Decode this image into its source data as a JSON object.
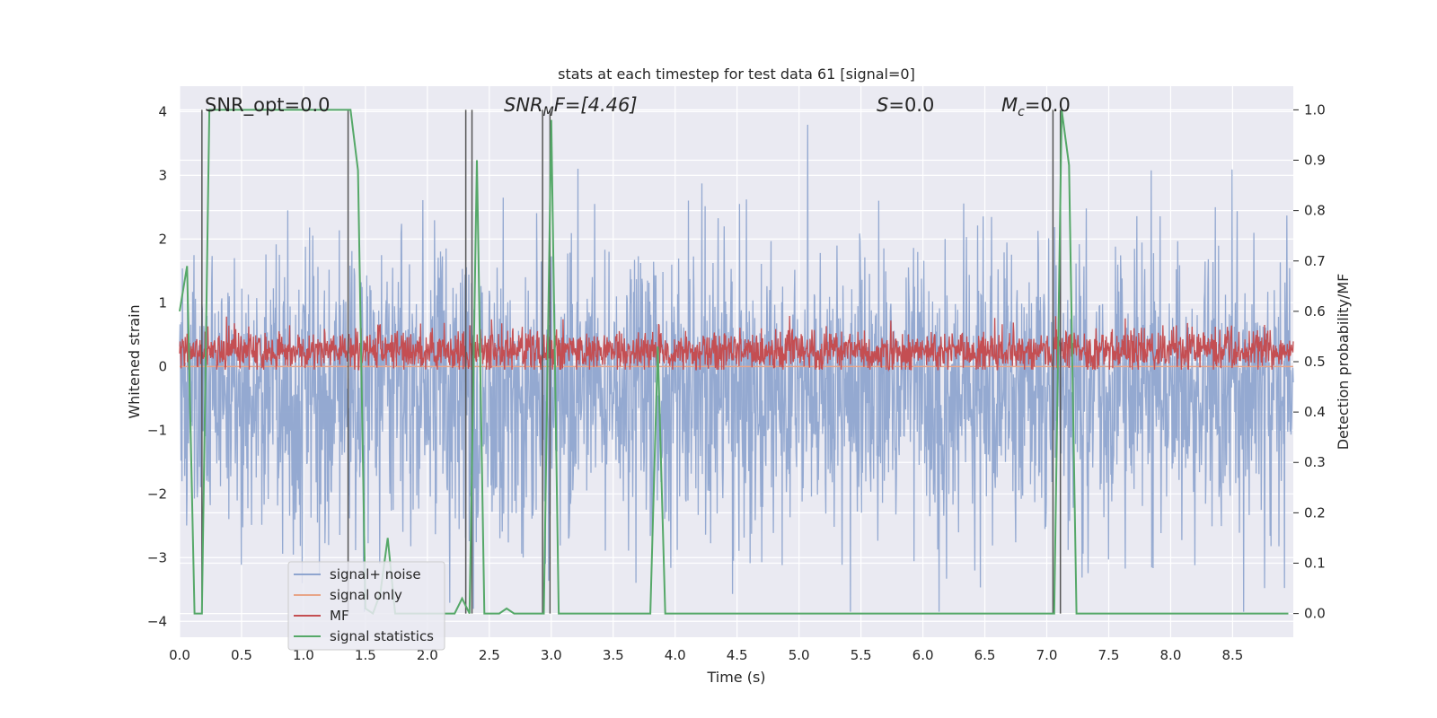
{
  "chart_data": {
    "type": "line",
    "title": "stats at each timestep for test data 61 [signal=0]",
    "xlabel": "Time (s)",
    "ylabel": "Whitened strain",
    "ylabel_right": "Detection probability/MF",
    "xlim": [
      0.0,
      8.99
    ],
    "ylim": [
      -4.25,
      4.4
    ],
    "ylim_right": [
      -0.047,
      1.047
    ],
    "xticks": [
      "0.0",
      "0.5",
      "1.0",
      "1.5",
      "2.0",
      "2.5",
      "3.0",
      "3.5",
      "4.0",
      "4.5",
      "5.0",
      "5.5",
      "6.0",
      "6.5",
      "7.0",
      "7.5",
      "8.0",
      "8.5"
    ],
    "yticks_left": [
      "4",
      "3",
      "2",
      "1",
      "0",
      "−1",
      "−2",
      "−3",
      "−4"
    ],
    "yticks_right": [
      "1.0",
      "0.9",
      "0.8",
      "0.7",
      "0.6",
      "0.5",
      "0.4",
      "0.3",
      "0.2",
      "0.1",
      "0.0"
    ],
    "grid": true,
    "legend_position": "bottom-left",
    "annotations": {
      "snr_opt": "SNR_opt=0.0",
      "snr_mf_sym": "SNR",
      "snr_mf_sub": "M",
      "snr_mf_rest": "F=[4.46]",
      "s_sym": "S",
      "s_rest": "=0.0",
      "mc_sym": "M",
      "mc_sub": "c",
      "mc_rest": "=0.0"
    },
    "series": [
      {
        "name": "signal+ noise",
        "color": "#8fa5cf",
        "axis": "left",
        "description_stats": {
          "center": -0.4,
          "typical_range": [
            -2.4,
            2.3
          ],
          "extremes": [
            -3.85,
            3.85
          ]
        }
      },
      {
        "name": "signal only",
        "color": "#e8a588",
        "axis": "left",
        "x": [
          0.0,
          8.99
        ],
        "y": [
          0.0,
          0.0
        ]
      },
      {
        "name": "MF",
        "color": "#c44e52",
        "axis": "left",
        "description_stats": {
          "center": 0.25,
          "typical_range": [
            0.05,
            0.6
          ],
          "extremes": [
            -0.05,
            1.0
          ]
        }
      },
      {
        "name": "signal statistics",
        "color": "#55a868",
        "axis": "right",
        "x": [
          0.0,
          0.06,
          0.12,
          0.18,
          0.24,
          0.3,
          0.36,
          0.42,
          0.48,
          0.54,
          0.6,
          0.66,
          0.72,
          0.78,
          0.84,
          0.9,
          0.96,
          1.02,
          1.08,
          1.14,
          1.2,
          1.26,
          1.32,
          1.38,
          1.44,
          1.5,
          1.56,
          1.62,
          1.68,
          1.74,
          1.8,
          1.86,
          1.92,
          1.98,
          2.04,
          2.1,
          2.16,
          2.22,
          2.28,
          2.34,
          2.4,
          2.46,
          2.52,
          2.58,
          2.64,
          2.7,
          2.76,
          2.82,
          2.88,
          2.94,
          3.0,
          3.06,
          3.12,
          3.8,
          3.86,
          3.92,
          7.06,
          7.12,
          7.18,
          7.24,
          8.95
        ],
        "y": [
          0.6,
          0.69,
          0.0,
          0.0,
          1.0,
          1.0,
          1.0,
          1.0,
          1.0,
          1.0,
          1.0,
          1.0,
          1.0,
          1.0,
          1.0,
          1.0,
          1.0,
          1.0,
          1.0,
          1.0,
          1.0,
          1.0,
          1.0,
          1.0,
          0.88,
          0.01,
          0.0,
          0.04,
          0.15,
          0.0,
          0.0,
          0.0,
          0.0,
          0.0,
          0.0,
          0.0,
          0.0,
          0.0,
          0.03,
          0.0,
          0.9,
          0.0,
          0.0,
          0.0,
          0.01,
          0.0,
          0.0,
          0.0,
          0.0,
          0.0,
          0.98,
          0.0,
          0.0,
          0.0,
          0.53,
          0.0,
          0.0,
          1.0,
          0.89,
          0.0,
          0.0
        ]
      }
    ],
    "vertical_markers": [
      0.18,
      1.36,
      2.31,
      2.36,
      2.93,
      2.99,
      7.05,
      7.11
    ]
  }
}
